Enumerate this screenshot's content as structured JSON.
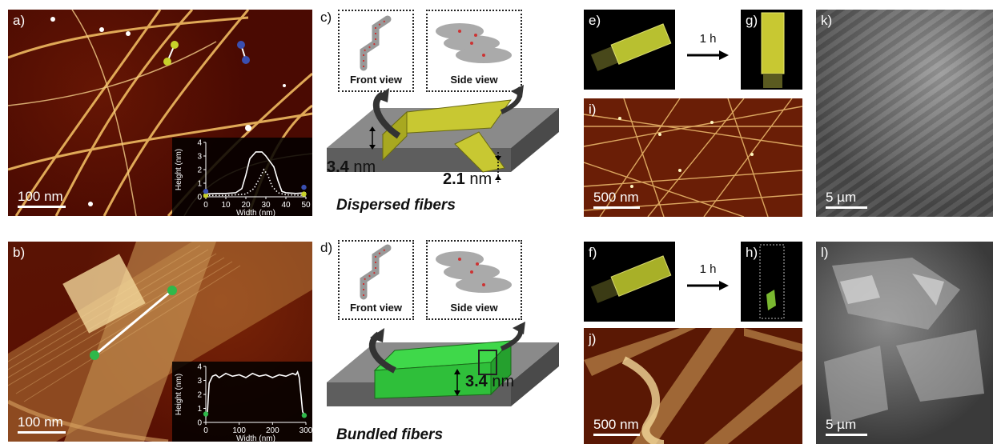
{
  "panels": {
    "a": {
      "label": "a)",
      "scale": "100 nm"
    },
    "b": {
      "label": "b)",
      "scale": "100 nm"
    },
    "c": {
      "label": "c)",
      "front": "Front view",
      "side": "Side view",
      "caption": "Dispersed fibers",
      "dim1_num": "3.4",
      "dim1_unit": "nm",
      "dim2_num": "2.1",
      "dim2_unit": "nm"
    },
    "d": {
      "label": "d)",
      "front": "Front view",
      "side": "Side view",
      "caption": "Bundled fibers",
      "dim_num": "3.4",
      "dim_unit": "nm"
    },
    "e": {
      "label": "e)"
    },
    "f": {
      "label": "f)"
    },
    "g": {
      "label": "g)"
    },
    "h": {
      "label": "h)"
    },
    "i": {
      "label": "i)",
      "scale": "500 nm"
    },
    "j": {
      "label": "j)",
      "scale": "500 nm"
    },
    "k": {
      "label": "k)",
      "scale": "5 µm"
    },
    "l": {
      "label": "l)",
      "scale": "5 µm"
    },
    "arrow_top": "1 h",
    "arrow_bottom": "1 h"
  },
  "chart_data": [
    {
      "type": "line",
      "xlabel": "Width (nm)",
      "ylabel": "Height (nm)",
      "xticks": [
        "0",
        "10",
        "20",
        "30",
        "40",
        "50"
      ],
      "yticks": [
        "0",
        "1",
        "2",
        "3",
        "4"
      ],
      "xlim": [
        0,
        50
      ],
      "ylim": [
        0,
        4
      ],
      "series": [
        {
          "style": "solid",
          "x": [
            0,
            5,
            10,
            15,
            18,
            20,
            22,
            25,
            28,
            30,
            32,
            34,
            36,
            38,
            40,
            45,
            50
          ],
          "y": [
            0.2,
            0.25,
            0.25,
            0.3,
            0.6,
            1.6,
            2.8,
            3.3,
            3.3,
            3.0,
            2.6,
            2.2,
            1.2,
            0.4,
            0.3,
            0.25,
            0.3
          ]
        },
        {
          "style": "dotted",
          "x": [
            0,
            10,
            20,
            24,
            27,
            29,
            31,
            33,
            36,
            40,
            50
          ],
          "y": [
            0.1,
            0.1,
            0.2,
            0.6,
            1.4,
            2.0,
            1.6,
            0.8,
            0.3,
            0.15,
            0.1
          ]
        }
      ],
      "markers": [
        {
          "color": "#c8d22a",
          "x": 0,
          "y": 0.1
        },
        {
          "color": "#3a4fb0",
          "x": 0,
          "y": 0.4
        },
        {
          "color": "#3a4fb0",
          "x": 49,
          "y": 0.7
        },
        {
          "color": "#c8d22a",
          "x": 49,
          "y": 0.2
        }
      ]
    },
    {
      "type": "line",
      "xlabel": "Width (nm)",
      "ylabel": "Height (nm)",
      "xticks": [
        "0",
        "100",
        "200",
        "300"
      ],
      "yticks": [
        "0",
        "1",
        "2",
        "3",
        "4"
      ],
      "xlim": [
        0,
        300
      ],
      "ylim": [
        0,
        4
      ],
      "series": [
        {
          "style": "solid",
          "x": [
            0,
            5,
            10,
            20,
            30,
            40,
            60,
            80,
            100,
            120,
            140,
            160,
            180,
            200,
            220,
            240,
            260,
            270,
            275,
            280,
            285,
            290,
            295,
            300
          ],
          "y": [
            0.4,
            0.8,
            2.8,
            3.3,
            3.4,
            3.2,
            3.5,
            3.3,
            3.4,
            3.2,
            3.5,
            3.3,
            3.4,
            3.2,
            3.4,
            3.3,
            3.5,
            3.4,
            3.6,
            3.2,
            2.0,
            0.8,
            0.5,
            0.5
          ]
        }
      ],
      "markers": [
        {
          "color": "#2fb84a",
          "x": 0,
          "y": 0.6
        },
        {
          "color": "#2fb84a",
          "x": 295,
          "y": 0.5
        }
      ]
    }
  ],
  "colors": {
    "yellow_fiber": "#c8c832",
    "green_fiber": "#2fbf3a",
    "blue_marker": "#3a4fb0",
    "substrate": "#7a7a7a"
  }
}
